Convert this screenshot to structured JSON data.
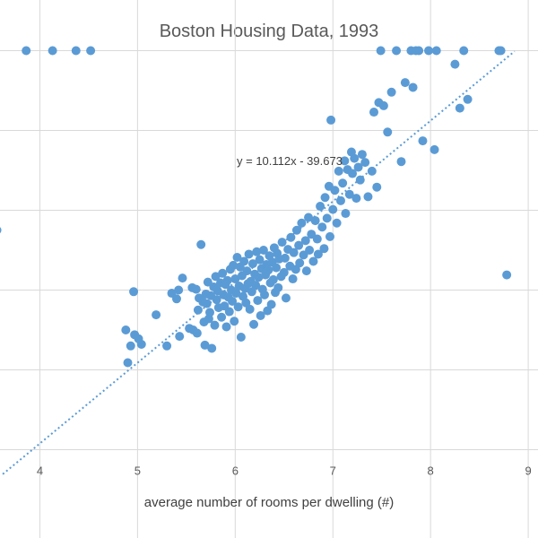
{
  "chart_data": {
    "type": "scatter",
    "title": "Boston Housing Data, 1993",
    "xlabel": "average number of rooms per dwelling (#)",
    "ylabel": "",
    "xlim": [
      3.5,
      9.1
    ],
    "ylim": [
      -5,
      55
    ],
    "x_ticks": [
      4,
      5,
      6,
      7,
      8,
      9
    ],
    "y_gridlines": [
      0,
      10,
      20,
      30,
      40,
      50
    ],
    "grid": true,
    "legend": "none",
    "colors": {
      "points": "#5b9bd5",
      "trendline": "#5b9bd5",
      "grid": "#d9d9d9"
    },
    "trendline": {
      "slope": 10.112,
      "intercept": -39.673,
      "style": "dotted",
      "label": "y = 10.112x - 39.673"
    },
    "series": [
      {
        "points": [
          [
            3.56,
            27.5
          ],
          [
            3.86,
            50.0
          ],
          [
            4.13,
            50.0
          ],
          [
            4.37,
            50.0
          ],
          [
            4.52,
            50.0
          ],
          [
            4.88,
            15.0
          ],
          [
            4.9,
            10.9
          ],
          [
            4.93,
            13.0
          ],
          [
            4.96,
            19.8
          ],
          [
            4.97,
            14.4
          ],
          [
            5.01,
            13.9
          ],
          [
            5.04,
            13.2
          ],
          [
            5.19,
            16.9
          ],
          [
            5.3,
            13.0
          ],
          [
            5.35,
            19.6
          ],
          [
            5.4,
            18.9
          ],
          [
            5.42,
            20.0
          ],
          [
            5.43,
            14.2
          ],
          [
            5.46,
            21.5
          ],
          [
            5.53,
            15.2
          ],
          [
            5.56,
            20.3
          ],
          [
            5.57,
            15.0
          ],
          [
            5.6,
            20.1
          ],
          [
            5.61,
            14.6
          ],
          [
            5.62,
            17.5
          ],
          [
            5.63,
            19.0
          ],
          [
            5.65,
            25.7
          ],
          [
            5.67,
            18.5
          ],
          [
            5.68,
            16.0
          ],
          [
            5.69,
            13.1
          ],
          [
            5.7,
            19.5
          ],
          [
            5.71,
            18.3
          ],
          [
            5.72,
            21.0
          ],
          [
            5.73,
            16.4
          ],
          [
            5.74,
            17.2
          ],
          [
            5.75,
            19.3
          ],
          [
            5.76,
            12.7
          ],
          [
            5.78,
            20.4
          ],
          [
            5.79,
            15.6
          ],
          [
            5.8,
            21.7
          ],
          [
            5.81,
            18.8
          ],
          [
            5.82,
            19.9
          ],
          [
            5.83,
            17.8
          ],
          [
            5.85,
            20.9
          ],
          [
            5.86,
            16.6
          ],
          [
            5.87,
            22.1
          ],
          [
            5.88,
            19.4
          ],
          [
            5.89,
            18.0
          ],
          [
            5.9,
            20.7
          ],
          [
            5.91,
            15.4
          ],
          [
            5.92,
            21.2
          ],
          [
            5.93,
            19.1
          ],
          [
            5.94,
            17.3
          ],
          [
            5.95,
            22.6
          ],
          [
            5.96,
            20.0
          ],
          [
            5.97,
            18.6
          ],
          [
            5.98,
            23.1
          ],
          [
            5.99,
            16.1
          ],
          [
            6.0,
            21.4
          ],
          [
            6.01,
            19.6
          ],
          [
            6.02,
            24.1
          ],
          [
            6.03,
            17.9
          ],
          [
            6.04,
            20.5
          ],
          [
            6.05,
            22.9
          ],
          [
            6.06,
            14.1
          ],
          [
            6.07,
            21.8
          ],
          [
            6.08,
            19.2
          ],
          [
            6.09,
            23.6
          ],
          [
            6.1,
            20.2
          ],
          [
            6.11,
            18.4
          ],
          [
            6.12,
            22.4
          ],
          [
            6.13,
            20.8
          ],
          [
            6.14,
            24.5
          ],
          [
            6.15,
            17.6
          ],
          [
            6.16,
            21.1
          ],
          [
            6.17,
            19.8
          ],
          [
            6.18,
            23.3
          ],
          [
            6.19,
            15.7
          ],
          [
            6.2,
            22.0
          ],
          [
            6.21,
            20.6
          ],
          [
            6.22,
            24.8
          ],
          [
            6.23,
            18.7
          ],
          [
            6.24,
            21.6
          ],
          [
            6.25,
            23.8
          ],
          [
            6.26,
            16.8
          ],
          [
            6.27,
            22.7
          ],
          [
            6.28,
            20.1
          ],
          [
            6.29,
            25.0
          ],
          [
            6.3,
            19.4
          ],
          [
            6.31,
            21.9
          ],
          [
            6.32,
            23.2
          ],
          [
            6.33,
            17.4
          ],
          [
            6.34,
            22.5
          ],
          [
            6.35,
            24.3
          ],
          [
            6.36,
            20.9
          ],
          [
            6.37,
            18.2
          ],
          [
            6.38,
            23.5
          ],
          [
            6.39,
            21.3
          ],
          [
            6.4,
            25.3
          ],
          [
            6.41,
            19.7
          ],
          [
            6.42,
            22.8
          ],
          [
            6.43,
            24.6
          ],
          [
            6.44,
            20.3
          ],
          [
            6.45,
            23.9
          ],
          [
            6.47,
            21.7
          ],
          [
            6.48,
            26.0
          ],
          [
            6.5,
            22.2
          ],
          [
            6.51,
            24.0
          ],
          [
            6.52,
            19.0
          ],
          [
            6.54,
            25.1
          ],
          [
            6.56,
            23.0
          ],
          [
            6.57,
            26.6
          ],
          [
            6.59,
            21.4
          ],
          [
            6.6,
            24.7
          ],
          [
            6.62,
            22.6
          ],
          [
            6.63,
            27.5
          ],
          [
            6.65,
            25.6
          ],
          [
            6.66,
            23.4
          ],
          [
            6.68,
            28.4
          ],
          [
            6.7,
            24.4
          ],
          [
            6.72,
            26.2
          ],
          [
            6.73,
            22.4
          ],
          [
            6.75,
            29.1
          ],
          [
            6.76,
            25.0
          ],
          [
            6.78,
            27.0
          ],
          [
            6.8,
            23.6
          ],
          [
            6.82,
            28.7
          ],
          [
            6.84,
            26.4
          ],
          [
            6.85,
            24.5
          ],
          [
            6.87,
            30.5
          ],
          [
            6.89,
            27.9
          ],
          [
            6.91,
            25.2
          ],
          [
            6.92,
            31.6
          ],
          [
            6.94,
            29.0
          ],
          [
            6.96,
            33.0
          ],
          [
            6.97,
            26.7
          ],
          [
            6.98,
            41.3
          ],
          [
            7.0,
            30.1
          ],
          [
            7.02,
            32.5
          ],
          [
            7.04,
            28.4
          ],
          [
            7.06,
            34.9
          ],
          [
            7.08,
            31.2
          ],
          [
            7.1,
            33.4
          ],
          [
            7.12,
            36.2
          ],
          [
            7.13,
            29.6
          ],
          [
            7.15,
            35.1
          ],
          [
            7.17,
            32.0
          ],
          [
            7.19,
            37.3
          ],
          [
            7.2,
            34.6
          ],
          [
            7.22,
            36.5
          ],
          [
            7.24,
            31.5
          ],
          [
            7.26,
            35.4
          ],
          [
            7.28,
            33.8
          ],
          [
            7.3,
            37.0
          ],
          [
            7.33,
            36.0
          ],
          [
            7.36,
            31.7
          ],
          [
            7.4,
            34.9
          ],
          [
            7.42,
            42.3
          ],
          [
            7.45,
            32.9
          ],
          [
            7.47,
            43.5
          ],
          [
            7.49,
            50.0
          ],
          [
            7.52,
            43.1
          ],
          [
            7.56,
            39.8
          ],
          [
            7.6,
            44.8
          ],
          [
            7.65,
            50.0
          ],
          [
            7.7,
            36.1
          ],
          [
            7.74,
            46.0
          ],
          [
            7.8,
            50.0
          ],
          [
            7.82,
            45.4
          ],
          [
            7.85,
            50.0
          ],
          [
            7.88,
            50.0
          ],
          [
            7.92,
            38.7
          ],
          [
            7.98,
            50.0
          ],
          [
            8.04,
            37.6
          ],
          [
            8.06,
            50.0
          ],
          [
            8.25,
            48.3
          ],
          [
            8.3,
            42.8
          ],
          [
            8.34,
            50.0
          ],
          [
            8.38,
            43.9
          ],
          [
            8.7,
            50.0
          ],
          [
            8.72,
            50.0
          ],
          [
            8.78,
            21.9
          ]
        ]
      }
    ]
  }
}
